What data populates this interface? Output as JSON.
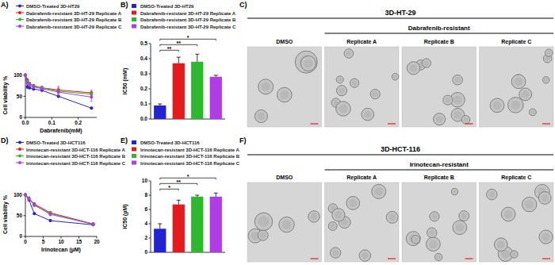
{
  "chart_data": [
    {
      "type": "line",
      "title": "A)",
      "x_label": "Dabrafenib(mM)",
      "y_label": "Cell viability %",
      "x": [
        0,
        0.0078,
        0.0156,
        0.03125,
        0.0625,
        0.125,
        0.25
      ],
      "xlim": [
        0,
        0.27
      ],
      "xticks": [
        {
          "value": 0,
          "label": "0.0"
        },
        0.1,
        0.2
      ],
      "ylim": [
        0,
        105
      ],
      "yticks": [
        0,
        50,
        100
      ],
      "grid": false,
      "marker": "circle",
      "series": [
        {
          "name": "DMSO-Treated 3D-HT29",
          "color": "#2323d6",
          "values": [
            100,
            72,
            70,
            67,
            64,
            50,
            22
          ],
          "errors": [
            0,
            3,
            2,
            2,
            2,
            3,
            2
          ]
        },
        {
          "name": "Dabrafenib-resistant 3D-HT-29 Replicate A",
          "color": "#e41a1c",
          "values": [
            100,
            88,
            80,
            75,
            70,
            65,
            58
          ],
          "errors": [
            0,
            4,
            3,
            3,
            4,
            8,
            6
          ]
        },
        {
          "name": "Dabrafenib-resistant 3D-HT-29 Replicate B",
          "color": "#2db82d",
          "values": [
            100,
            85,
            80,
            74,
            70,
            62,
            55
          ],
          "errors": [
            0,
            3,
            3,
            3,
            3,
            5,
            5
          ]
        },
        {
          "name": "Dabrafenib-resistant 3D-HT-29 Replicate C",
          "color": "#b23be8",
          "values": [
            100,
            82,
            76,
            72,
            68,
            60,
            48
          ],
          "errors": [
            0,
            3,
            3,
            4,
            3,
            9,
            10
          ]
        }
      ]
    },
    {
      "type": "bar",
      "title": "B)",
      "y_label": "IC50 (mM)",
      "categories": [
        null
      ],
      "ylim": [
        0,
        0.5
      ],
      "yticks": [
        {
          "value": 0,
          "label": "0.0"
        },
        0.1,
        0.2,
        0.3,
        0.4,
        0.5
      ],
      "grid": false,
      "tick_labels": "y",
      "series": [
        {
          "name": "DMSO-Treated 3D-HT29",
          "color": "#2323d6",
          "values": [
            0.09
          ],
          "errors": [
            0.01
          ]
        },
        {
          "name": "Dabrafenib-resistant 3D-HT-29 Replicate A",
          "color": "#e41a1c",
          "values": [
            0.37
          ],
          "errors": [
            0.04
          ]
        },
        {
          "name": "Dabrafenib-resistant 3D-HT-29 Replicate B",
          "color": "#2db82d",
          "values": [
            0.38
          ],
          "errors": [
            0.05
          ]
        },
        {
          "name": "Dabrafenib-resistant 3D-HT-29 Replicate C",
          "color": "#b23be8",
          "values": [
            0.28
          ],
          "errors": [
            0.01
          ]
        }
      ],
      "annotations": [
        {
          "text": "**",
          "between": [
            0,
            1
          ]
        },
        {
          "text": "**",
          "between": [
            0,
            2
          ]
        },
        {
          "text": "*",
          "between": [
            0,
            3
          ]
        }
      ]
    },
    {
      "type": "line",
      "title": "D)",
      "x_label": "Irinotecan (µM)",
      "y_label": "Cell viability %",
      "x": [
        0,
        1,
        2.5,
        7,
        19
      ],
      "xlim": [
        0,
        20
      ],
      "xticks": [
        0,
        5,
        10,
        15,
        20
      ],
      "ylim": [
        0,
        105
      ],
      "yticks": [
        0,
        50,
        100
      ],
      "grid": false,
      "marker": "circle",
      "series": [
        {
          "name": "DMSO-Treated 3D-HCT116",
          "color": "#2323d6",
          "values": [
            100,
            88,
            55,
            38,
            28
          ],
          "errors": [
            0,
            2,
            2,
            2,
            2
          ]
        },
        {
          "name": "Irinotecan-resistant 3D-HCT-116 Replicate A",
          "color": "#e41a1c",
          "values": [
            100,
            92,
            78,
            57,
            30
          ],
          "errors": [
            0,
            3,
            3,
            3,
            2
          ]
        },
        {
          "name": "Irinotecan-resistant 3D-HCT-116 Replicate B",
          "color": "#2db82d",
          "values": [
            100,
            92,
            75,
            55,
            29
          ],
          "errors": [
            0,
            3,
            3,
            3,
            2
          ]
        },
        {
          "name": "Irinotecan-resistant 3D-HCT-116 Replicate C",
          "color": "#b23be8",
          "values": [
            100,
            90,
            76,
            53,
            30
          ],
          "errors": [
            0,
            3,
            3,
            3,
            2
          ]
        }
      ]
    },
    {
      "type": "bar",
      "title": "E)",
      "y_label": "IC50 (µM)",
      "categories": [
        null
      ],
      "ylim": [
        0,
        10
      ],
      "yticks": [
        0,
        2,
        4,
        6,
        8,
        10
      ],
      "grid": false,
      "tick_labels": "y",
      "series": [
        {
          "name": "DMSO-Treated 3D-HCT116",
          "color": "#2323d6",
          "values": [
            3.3
          ],
          "errors": [
            0.7
          ]
        },
        {
          "name": "Irinotecan-resistant 3D-HCT-116 Replicate A",
          "color": "#e41a1c",
          "values": [
            6.7
          ],
          "errors": [
            0.6
          ]
        },
        {
          "name": "Irinotecan-resistant 3D-HCT-116 Replicate B",
          "color": "#2db82d",
          "values": [
            7.8
          ],
          "errors": [
            0.2
          ]
        },
        {
          "name": "Irinotecan-resistant 3D-HCT-116 Replicate C",
          "color": "#b23be8",
          "values": [
            7.8
          ],
          "errors": [
            0.5
          ]
        }
      ],
      "annotations": [
        {
          "text": "*",
          "between": [
            0,
            1
          ]
        },
        {
          "text": "**",
          "between": [
            0,
            2
          ]
        },
        {
          "text": "*",
          "between": [
            0,
            3
          ]
        }
      ]
    }
  ],
  "images": [
    {
      "label": "C)",
      "title": "3D-HT-29",
      "group": "Dabrafenib-resistant",
      "panels": [
        "DMSO",
        "Replicate A",
        "Replicate B",
        "Replicate C"
      ]
    },
    {
      "label": "F)",
      "title": "3D-HCT-116",
      "group": "Irinotecan-resistant",
      "panels": [
        "DMSO",
        "Replicate A",
        "Replicate B",
        "Replicate C"
      ]
    }
  ]
}
